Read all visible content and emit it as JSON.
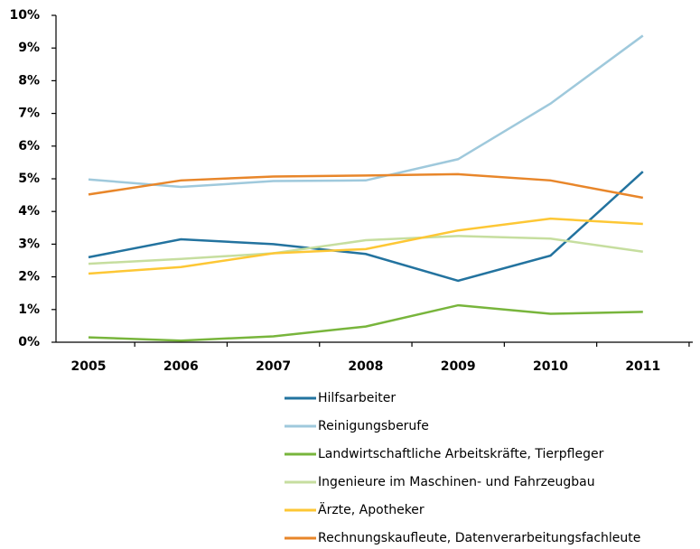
{
  "chart_data": {
    "type": "line",
    "categories": [
      "2005",
      "2006",
      "2007",
      "2008",
      "2009",
      "2010",
      "2011"
    ],
    "series": [
      {
        "name": "Hilfsarbeiter",
        "color": "#23739f",
        "values": [
          2.6,
          3.15,
          3.0,
          2.7,
          1.88,
          2.65,
          5.22
        ]
      },
      {
        "name": "Reinigungsberufe",
        "color": "#9fc9dc",
        "values": [
          4.98,
          4.75,
          4.93,
          4.95,
          5.6,
          7.3,
          9.38
        ]
      },
      {
        "name": "Landwirtschaftliche Arbeitskräfte, Tierpfleger",
        "color": "#78b53c",
        "values": [
          0.15,
          0.05,
          0.18,
          0.48,
          1.13,
          0.87,
          0.93
        ]
      },
      {
        "name": "Ingenieure im Maschinen- und Fahrzeugbau",
        "color": "#c6de9f",
        "values": [
          2.4,
          2.55,
          2.72,
          3.12,
          3.25,
          3.17,
          2.77
        ]
      },
      {
        "name": "Ärzte, Apotheker",
        "color": "#fdc735",
        "values": [
          2.1,
          2.3,
          2.72,
          2.85,
          3.42,
          3.78,
          3.62
        ]
      },
      {
        "name": "Rechnungskaufleute, Datenverarbeitungsfachleute",
        "color": "#e8862a",
        "values": [
          4.52,
          4.95,
          5.07,
          5.1,
          5.14,
          4.95,
          4.42
        ]
      }
    ],
    "ylim": [
      0,
      10
    ],
    "yticks": [
      {
        "value": 0,
        "label": "0%"
      },
      {
        "value": 1,
        "label": "1%"
      },
      {
        "value": 2,
        "label": "2%"
      },
      {
        "value": 3,
        "label": "3%"
      },
      {
        "value": 4,
        "label": "4%"
      },
      {
        "value": 5,
        "label": "5%"
      },
      {
        "value": 6,
        "label": "6%"
      },
      {
        "value": 7,
        "label": "7%"
      },
      {
        "value": 8,
        "label": "8%"
      },
      {
        "value": 9,
        "label": "9%"
      },
      {
        "value": 10,
        "label": "10%"
      }
    ],
    "grid": false
  }
}
